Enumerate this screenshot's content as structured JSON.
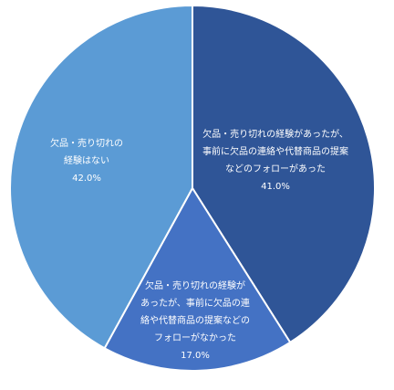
{
  "chart_data": {
    "type": "pie",
    "title": "",
    "start_angle_deg": 0,
    "direction": "clockwise",
    "series": [
      {
        "values": [
          {
            "label_lines": [
              "欠品・売り切れの経験があったが、",
              "事前に欠品の連絡や代替商品の提案",
              "などのフォローがあった"
            ],
            "value": 41.0,
            "value_label": "41.0%",
            "color": "#2f5597"
          },
          {
            "label_lines": [
              "欠品・売り切れの経験が",
              "あったが、事前に欠品の連",
              "絡や代替商品の提案などの",
              "フォローがなかった"
            ],
            "value": 17.0,
            "value_label": "17.0%",
            "color": "#4472c4"
          },
          {
            "label_lines": [
              "欠品・売り切れの",
              "経験はない"
            ],
            "value": 42.0,
            "value_label": "42.0%",
            "color": "#5b9bd5"
          }
        ]
      }
    ],
    "legend": "none",
    "slice_border_color": "#ffffff"
  }
}
